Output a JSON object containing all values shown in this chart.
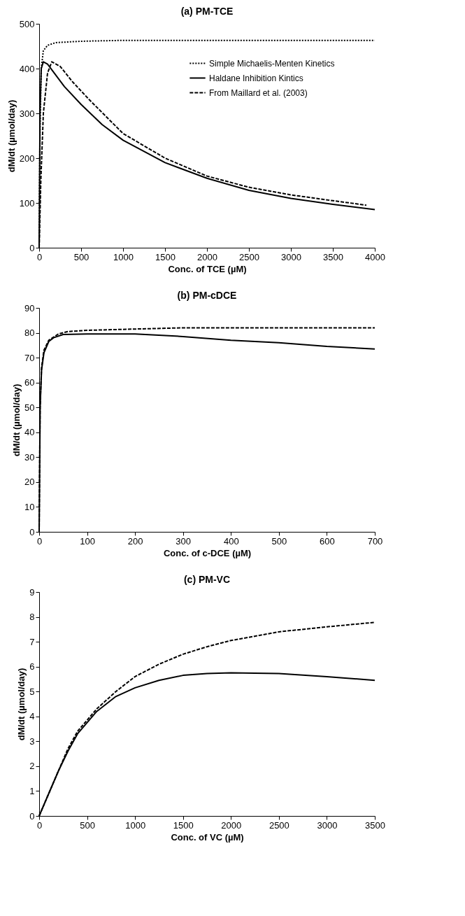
{
  "chart_data": [
    {
      "type": "line",
      "title": "(a) PM-TCE",
      "xlabel": "Conc. of TCE (µM)",
      "ylabel": "dM/dt (µmol/day)",
      "xlim": [
        0,
        4000
      ],
      "ylim": [
        0,
        500
      ],
      "xticks": [
        0,
        500,
        1000,
        1500,
        2000,
        2500,
        3000,
        3500,
        4000
      ],
      "yticks": [
        0,
        100,
        200,
        300,
        400,
        500
      ],
      "grid": false,
      "legend": "top right",
      "series": [
        {
          "name": "Simple Michaelis-Menten Kinetics",
          "color": "#000000",
          "line_style": "dotted",
          "x": [
            0,
            10,
            25,
            50,
            100,
            200,
            500,
            1000,
            2000,
            3000,
            4000
          ],
          "values": [
            0,
            270,
            400,
            440,
            452,
            458,
            461,
            463,
            463,
            463,
            463
          ]
        },
        {
          "name": "Haldane Inhibition Kintics",
          "color": "#000000",
          "line_style": "solid",
          "x": [
            0,
            10,
            25,
            50,
            100,
            200,
            300,
            500,
            750,
            1000,
            1500,
            2000,
            2500,
            3000,
            3500,
            4000
          ],
          "values": [
            0,
            300,
            400,
            415,
            410,
            385,
            360,
            320,
            275,
            240,
            190,
            155,
            128,
            110,
            97,
            85
          ]
        },
        {
          "name": "From Maillard et al. (2003)",
          "color": "#000000",
          "line_style": "dashed",
          "x": [
            0,
            20,
            50,
            100,
            150,
            250,
            400,
            600,
            1000,
            1500,
            2000,
            2500,
            3000,
            3500,
            3900
          ],
          "values": [
            0,
            150,
            300,
            390,
            415,
            405,
            370,
            330,
            255,
            200,
            160,
            135,
            118,
            105,
            95
          ]
        }
      ]
    },
    {
      "type": "line",
      "title": "(b) PM-cDCE",
      "xlabel": "Conc. of c-DCE (µM)",
      "ylabel": "dM/dt (µmol/day)",
      "xlim": [
        0,
        700
      ],
      "ylim": [
        0,
        90
      ],
      "xticks": [
        0,
        100,
        200,
        300,
        400,
        500,
        600,
        700
      ],
      "yticks": [
        0,
        10,
        20,
        30,
        40,
        50,
        60,
        70,
        80,
        90
      ],
      "grid": false,
      "legend": false,
      "series": [
        {
          "color": "#000000",
          "line_style": "dashed",
          "x": [
            0,
            2,
            5,
            10,
            20,
            40,
            60,
            100,
            200,
            300,
            500,
            700
          ],
          "values": [
            0,
            50,
            66,
            73,
            77,
            79.5,
            80.5,
            81,
            81.5,
            82,
            82,
            82
          ]
        },
        {
          "color": "#000000",
          "line_style": "solid",
          "x": [
            0,
            2,
            5,
            10,
            20,
            30,
            50,
            100,
            200,
            300,
            400,
            500,
            600,
            700
          ],
          "values": [
            0,
            50,
            65,
            72,
            76.5,
            78,
            79.3,
            79.5,
            79.5,
            78.5,
            77,
            76,
            74.5,
            73.5
          ]
        }
      ]
    },
    {
      "type": "line",
      "title": "(c) PM-VC",
      "xlabel": "Conc. of VC (µM)",
      "ylabel": "dM/dt (µmol/day)",
      "xlim": [
        0,
        3500
      ],
      "ylim": [
        0,
        9
      ],
      "xticks": [
        0,
        500,
        1000,
        1500,
        2000,
        2500,
        3000,
        3500
      ],
      "yticks": [
        0,
        1,
        2,
        3,
        4,
        5,
        6,
        7,
        8,
        9
      ],
      "grid": false,
      "legend": false,
      "series": [
        {
          "color": "#000000",
          "line_style": "dashed",
          "x": [
            0,
            100,
            200,
            300,
            400,
            600,
            800,
            1000,
            1250,
            1500,
            1750,
            2000,
            2500,
            3000,
            3500
          ],
          "values": [
            0,
            0.9,
            1.8,
            2.7,
            3.4,
            4.3,
            5.0,
            5.6,
            6.1,
            6.5,
            6.8,
            7.05,
            7.4,
            7.6,
            7.78
          ]
        },
        {
          "color": "#000000",
          "line_style": "solid",
          "x": [
            0,
            100,
            200,
            300,
            400,
            600,
            800,
            1000,
            1250,
            1500,
            1750,
            2000,
            2500,
            3000,
            3500
          ],
          "values": [
            0,
            0.9,
            1.8,
            2.6,
            3.3,
            4.2,
            4.8,
            5.15,
            5.45,
            5.65,
            5.72,
            5.75,
            5.72,
            5.6,
            5.45
          ]
        }
      ]
    }
  ]
}
